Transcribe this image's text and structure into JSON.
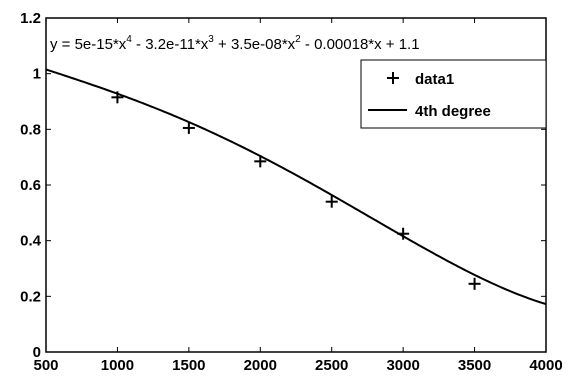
{
  "chart_data": {
    "type": "scatter",
    "title": "",
    "xlabel": "",
    "ylabel": "",
    "xlim": [
      500,
      4000
    ],
    "ylim": [
      0,
      1.2
    ],
    "grid": false,
    "x_ticks": [
      "500",
      "1000",
      "1500",
      "2000",
      "2500",
      "3000",
      "3500",
      "4000"
    ],
    "y_ticks": [
      "0",
      "0.2",
      "0.4",
      "0.6",
      "0.8",
      "1",
      "1.2"
    ],
    "series": [
      {
        "name": "data1",
        "marker": "+",
        "x": [
          1000,
          1500,
          2000,
          2500,
          3000,
          3500
        ],
        "y": [
          0.915,
          0.805,
          0.685,
          0.54,
          0.425,
          0.245
        ]
      },
      {
        "name": "4th degree",
        "kind": "line",
        "coefficients": [
          5e-15,
          -3.2e-11,
          3.5e-08,
          -0.00018,
          1.1
        ]
      }
    ],
    "annotation": {
      "parts": [
        "y = 5e-15*x",
        "4",
        " - 3.2e-11*x",
        "3",
        " + 3.5e-08*x",
        "2",
        " - 0.00018*x + 1.1"
      ]
    },
    "legend": {
      "position": "top-right",
      "entries": [
        "data1",
        "4th degree"
      ]
    },
    "colors": {
      "marker": "#000000",
      "line": "#000000",
      "axes": "#000000"
    }
  }
}
